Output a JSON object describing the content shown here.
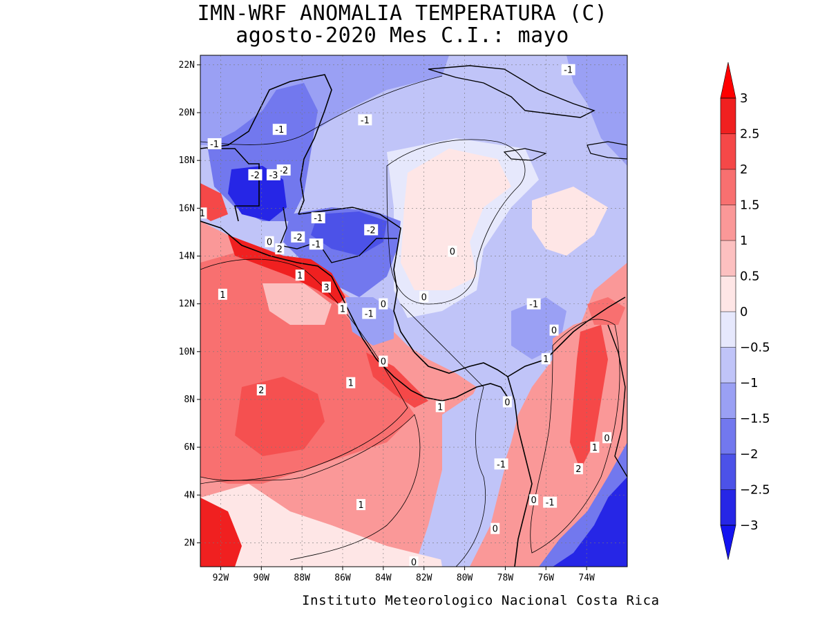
{
  "title": "IMN-WRF  ANOMALIA TEMPERATURA (C)",
  "subtitle": "agosto-2020 Mes C.I.: mayo",
  "footer": "Instituto Meteorologico Nacional Costa Rica",
  "map": {
    "lon_range": [
      -93,
      -72
    ],
    "lat_range": [
      1,
      22.4
    ],
    "lat_ticks": [
      {
        "v": 22,
        "l": "22N"
      },
      {
        "v": 20,
        "l": "20N"
      },
      {
        "v": 18,
        "l": "18N"
      },
      {
        "v": 16,
        "l": "16N"
      },
      {
        "v": 14,
        "l": "14N"
      },
      {
        "v": 12,
        "l": "12N"
      },
      {
        "v": 10,
        "l": "10N"
      },
      {
        "v": 8,
        "l": "8N"
      },
      {
        "v": 6,
        "l": "6N"
      },
      {
        "v": 4,
        "l": "4N"
      },
      {
        "v": 2,
        "l": "2N"
      }
    ],
    "lon_ticks": [
      {
        "v": -92,
        "l": "92W"
      },
      {
        "v": -90,
        "l": "90W"
      },
      {
        "v": -88,
        "l": "88W"
      },
      {
        "v": -86,
        "l": "86W"
      },
      {
        "v": -84,
        "l": "84W"
      },
      {
        "v": -82,
        "l": "82W"
      },
      {
        "v": -80,
        "l": "80W"
      },
      {
        "v": -78,
        "l": "78W"
      },
      {
        "v": -76,
        "l": "76W"
      },
      {
        "v": -74,
        "l": "74W"
      }
    ]
  },
  "colorbar": {
    "levels": [
      "3",
      "2.5",
      "2",
      "1.5",
      "1",
      "0.5",
      "0",
      "−0.5",
      "−1",
      "−1.5",
      "−2",
      "−2.5",
      "−3"
    ],
    "colors_top_to_bottom": [
      "#f02020",
      "#f54848",
      "#f87070",
      "#fa9898",
      "#fcc0c0",
      "#fee6e6",
      "#e6e8fc",
      "#c0c4f8",
      "#9aa0f4",
      "#7278ee",
      "#4c52e8",
      "#2626e6"
    ],
    "over_color": "#ff0000",
    "under_color": "#1414f0"
  },
  "contour_labels": [
    {
      "t": "-1",
      "lon": -74.9,
      "lat": 21.8
    },
    {
      "t": "-1",
      "lon": -84.9,
      "lat": 19.7
    },
    {
      "t": "-1",
      "lon": -89.1,
      "lat": 19.3
    },
    {
      "t": "-1",
      "lon": -92.3,
      "lat": 18.7
    },
    {
      "t": "-2",
      "lon": -88.9,
      "lat": 17.6
    },
    {
      "t": "-2",
      "lon": -90.3,
      "lat": 17.4
    },
    {
      "t": "-3",
      "lon": -89.4,
      "lat": 17.4
    },
    {
      "t": "1",
      "lon": -92.9,
      "lat": 15.8
    },
    {
      "t": "-1",
      "lon": -87.2,
      "lat": 15.6
    },
    {
      "t": "-2",
      "lon": -84.6,
      "lat": 15.1
    },
    {
      "t": "-2",
      "lon": -88.2,
      "lat": 14.8
    },
    {
      "t": "0",
      "lon": -89.6,
      "lat": 14.6
    },
    {
      "t": "-1",
      "lon": -87.3,
      "lat": 14.5
    },
    {
      "t": "2",
      "lon": -89.1,
      "lat": 14.3
    },
    {
      "t": "0",
      "lon": -80.6,
      "lat": 14.2
    },
    {
      "t": "1",
      "lon": -88.1,
      "lat": 13.2
    },
    {
      "t": "3",
      "lon": -86.8,
      "lat": 12.7
    },
    {
      "t": "1",
      "lon": -91.9,
      "lat": 12.4
    },
    {
      "t": "0",
      "lon": -82.0,
      "lat": 12.3
    },
    {
      "t": "-1",
      "lon": -76.6,
      "lat": 12.0
    },
    {
      "t": "0",
      "lon": -84.0,
      "lat": 12.0
    },
    {
      "t": "1",
      "lon": -86.0,
      "lat": 11.8
    },
    {
      "t": "-1",
      "lon": -84.7,
      "lat": 11.6
    },
    {
      "t": "0",
      "lon": -75.6,
      "lat": 10.9
    },
    {
      "t": "1",
      "lon": -76.0,
      "lat": 9.7
    },
    {
      "t": "0",
      "lon": -84.0,
      "lat": 9.6
    },
    {
      "t": "1",
      "lon": -85.6,
      "lat": 8.7
    },
    {
      "t": "2",
      "lon": -90.0,
      "lat": 8.4
    },
    {
      "t": "0",
      "lon": -77.9,
      "lat": 7.9
    },
    {
      "t": "1",
      "lon": -81.2,
      "lat": 7.7
    },
    {
      "t": "0",
      "lon": -73.0,
      "lat": 6.4
    },
    {
      "t": "1",
      "lon": -73.6,
      "lat": 6.0
    },
    {
      "t": "-1",
      "lon": -78.2,
      "lat": 5.3
    },
    {
      "t": "2",
      "lon": -74.4,
      "lat": 5.1
    },
    {
      "t": "0",
      "lon": -76.6,
      "lat": 3.8
    },
    {
      "t": "-1",
      "lon": -75.8,
      "lat": 3.7
    },
    {
      "t": "1",
      "lon": -85.1,
      "lat": 3.6
    },
    {
      "t": "0",
      "lon": -78.5,
      "lat": 2.6
    },
    {
      "t": "0",
      "lon": -82.5,
      "lat": 1.2
    }
  ]
}
